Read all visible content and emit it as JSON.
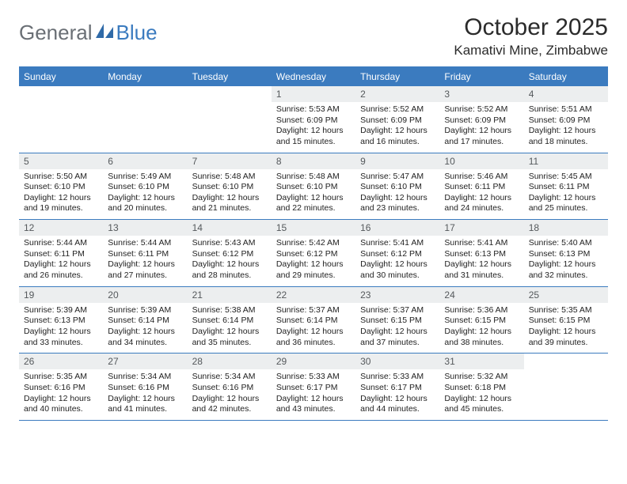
{
  "logo": {
    "text1": "General",
    "text2": "Blue",
    "icon_color": "#2f6aa8"
  },
  "title": "October 2025",
  "location": "Kamativi Mine, Zimbabwe",
  "colors": {
    "header_bg": "#3b7bbf",
    "header_text": "#ffffff",
    "daynum_bg": "#eceeef",
    "daynum_text": "#55595c",
    "body_text": "#222222",
    "rule": "#3b7bbf"
  },
  "dow": [
    "Sunday",
    "Monday",
    "Tuesday",
    "Wednesday",
    "Thursday",
    "Friday",
    "Saturday"
  ],
  "weeks": [
    [
      {
        "n": "",
        "sr": "",
        "ss": "",
        "dl1": "",
        "dl2": ""
      },
      {
        "n": "",
        "sr": "",
        "ss": "",
        "dl1": "",
        "dl2": ""
      },
      {
        "n": "",
        "sr": "",
        "ss": "",
        "dl1": "",
        "dl2": ""
      },
      {
        "n": "1",
        "sr": "Sunrise: 5:53 AM",
        "ss": "Sunset: 6:09 PM",
        "dl1": "Daylight: 12 hours",
        "dl2": "and 15 minutes."
      },
      {
        "n": "2",
        "sr": "Sunrise: 5:52 AM",
        "ss": "Sunset: 6:09 PM",
        "dl1": "Daylight: 12 hours",
        "dl2": "and 16 minutes."
      },
      {
        "n": "3",
        "sr": "Sunrise: 5:52 AM",
        "ss": "Sunset: 6:09 PM",
        "dl1": "Daylight: 12 hours",
        "dl2": "and 17 minutes."
      },
      {
        "n": "4",
        "sr": "Sunrise: 5:51 AM",
        "ss": "Sunset: 6:09 PM",
        "dl1": "Daylight: 12 hours",
        "dl2": "and 18 minutes."
      }
    ],
    [
      {
        "n": "5",
        "sr": "Sunrise: 5:50 AM",
        "ss": "Sunset: 6:10 PM",
        "dl1": "Daylight: 12 hours",
        "dl2": "and 19 minutes."
      },
      {
        "n": "6",
        "sr": "Sunrise: 5:49 AM",
        "ss": "Sunset: 6:10 PM",
        "dl1": "Daylight: 12 hours",
        "dl2": "and 20 minutes."
      },
      {
        "n": "7",
        "sr": "Sunrise: 5:48 AM",
        "ss": "Sunset: 6:10 PM",
        "dl1": "Daylight: 12 hours",
        "dl2": "and 21 minutes."
      },
      {
        "n": "8",
        "sr": "Sunrise: 5:48 AM",
        "ss": "Sunset: 6:10 PM",
        "dl1": "Daylight: 12 hours",
        "dl2": "and 22 minutes."
      },
      {
        "n": "9",
        "sr": "Sunrise: 5:47 AM",
        "ss": "Sunset: 6:10 PM",
        "dl1": "Daylight: 12 hours",
        "dl2": "and 23 minutes."
      },
      {
        "n": "10",
        "sr": "Sunrise: 5:46 AM",
        "ss": "Sunset: 6:11 PM",
        "dl1": "Daylight: 12 hours",
        "dl2": "and 24 minutes."
      },
      {
        "n": "11",
        "sr": "Sunrise: 5:45 AM",
        "ss": "Sunset: 6:11 PM",
        "dl1": "Daylight: 12 hours",
        "dl2": "and 25 minutes."
      }
    ],
    [
      {
        "n": "12",
        "sr": "Sunrise: 5:44 AM",
        "ss": "Sunset: 6:11 PM",
        "dl1": "Daylight: 12 hours",
        "dl2": "and 26 minutes."
      },
      {
        "n": "13",
        "sr": "Sunrise: 5:44 AM",
        "ss": "Sunset: 6:11 PM",
        "dl1": "Daylight: 12 hours",
        "dl2": "and 27 minutes."
      },
      {
        "n": "14",
        "sr": "Sunrise: 5:43 AM",
        "ss": "Sunset: 6:12 PM",
        "dl1": "Daylight: 12 hours",
        "dl2": "and 28 minutes."
      },
      {
        "n": "15",
        "sr": "Sunrise: 5:42 AM",
        "ss": "Sunset: 6:12 PM",
        "dl1": "Daylight: 12 hours",
        "dl2": "and 29 minutes."
      },
      {
        "n": "16",
        "sr": "Sunrise: 5:41 AM",
        "ss": "Sunset: 6:12 PM",
        "dl1": "Daylight: 12 hours",
        "dl2": "and 30 minutes."
      },
      {
        "n": "17",
        "sr": "Sunrise: 5:41 AM",
        "ss": "Sunset: 6:13 PM",
        "dl1": "Daylight: 12 hours",
        "dl2": "and 31 minutes."
      },
      {
        "n": "18",
        "sr": "Sunrise: 5:40 AM",
        "ss": "Sunset: 6:13 PM",
        "dl1": "Daylight: 12 hours",
        "dl2": "and 32 minutes."
      }
    ],
    [
      {
        "n": "19",
        "sr": "Sunrise: 5:39 AM",
        "ss": "Sunset: 6:13 PM",
        "dl1": "Daylight: 12 hours",
        "dl2": "and 33 minutes."
      },
      {
        "n": "20",
        "sr": "Sunrise: 5:39 AM",
        "ss": "Sunset: 6:14 PM",
        "dl1": "Daylight: 12 hours",
        "dl2": "and 34 minutes."
      },
      {
        "n": "21",
        "sr": "Sunrise: 5:38 AM",
        "ss": "Sunset: 6:14 PM",
        "dl1": "Daylight: 12 hours",
        "dl2": "and 35 minutes."
      },
      {
        "n": "22",
        "sr": "Sunrise: 5:37 AM",
        "ss": "Sunset: 6:14 PM",
        "dl1": "Daylight: 12 hours",
        "dl2": "and 36 minutes."
      },
      {
        "n": "23",
        "sr": "Sunrise: 5:37 AM",
        "ss": "Sunset: 6:15 PM",
        "dl1": "Daylight: 12 hours",
        "dl2": "and 37 minutes."
      },
      {
        "n": "24",
        "sr": "Sunrise: 5:36 AM",
        "ss": "Sunset: 6:15 PM",
        "dl1": "Daylight: 12 hours",
        "dl2": "and 38 minutes."
      },
      {
        "n": "25",
        "sr": "Sunrise: 5:35 AM",
        "ss": "Sunset: 6:15 PM",
        "dl1": "Daylight: 12 hours",
        "dl2": "and 39 minutes."
      }
    ],
    [
      {
        "n": "26",
        "sr": "Sunrise: 5:35 AM",
        "ss": "Sunset: 6:16 PM",
        "dl1": "Daylight: 12 hours",
        "dl2": "and 40 minutes."
      },
      {
        "n": "27",
        "sr": "Sunrise: 5:34 AM",
        "ss": "Sunset: 6:16 PM",
        "dl1": "Daylight: 12 hours",
        "dl2": "and 41 minutes."
      },
      {
        "n": "28",
        "sr": "Sunrise: 5:34 AM",
        "ss": "Sunset: 6:16 PM",
        "dl1": "Daylight: 12 hours",
        "dl2": "and 42 minutes."
      },
      {
        "n": "29",
        "sr": "Sunrise: 5:33 AM",
        "ss": "Sunset: 6:17 PM",
        "dl1": "Daylight: 12 hours",
        "dl2": "and 43 minutes."
      },
      {
        "n": "30",
        "sr": "Sunrise: 5:33 AM",
        "ss": "Sunset: 6:17 PM",
        "dl1": "Daylight: 12 hours",
        "dl2": "and 44 minutes."
      },
      {
        "n": "31",
        "sr": "Sunrise: 5:32 AM",
        "ss": "Sunset: 6:18 PM",
        "dl1": "Daylight: 12 hours",
        "dl2": "and 45 minutes."
      },
      {
        "n": "",
        "sr": "",
        "ss": "",
        "dl1": "",
        "dl2": ""
      }
    ]
  ]
}
